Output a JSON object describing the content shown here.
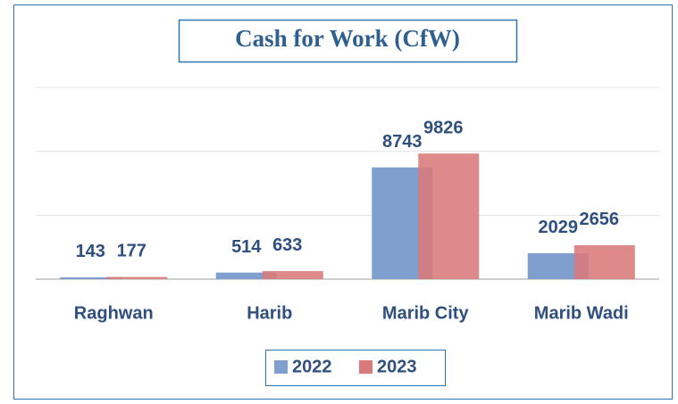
{
  "chart_data": {
    "type": "bar",
    "title": "Cash for Work (CfW)",
    "categories": [
      "Raghwan",
      "Harib",
      "Marib City",
      "Marib Wadi"
    ],
    "series": [
      {
        "name": "2022",
        "color": "#7f9fcf",
        "values": [
          143,
          514,
          8743,
          2029
        ]
      },
      {
        "name": "2023",
        "color": "#d97a7a",
        "values": [
          177,
          633,
          9826,
          2656
        ]
      }
    ],
    "ylim": [
      0,
      15000
    ],
    "yticks": [
      0,
      5000,
      10000,
      15000
    ],
    "grid": true,
    "legend": "bottom"
  }
}
